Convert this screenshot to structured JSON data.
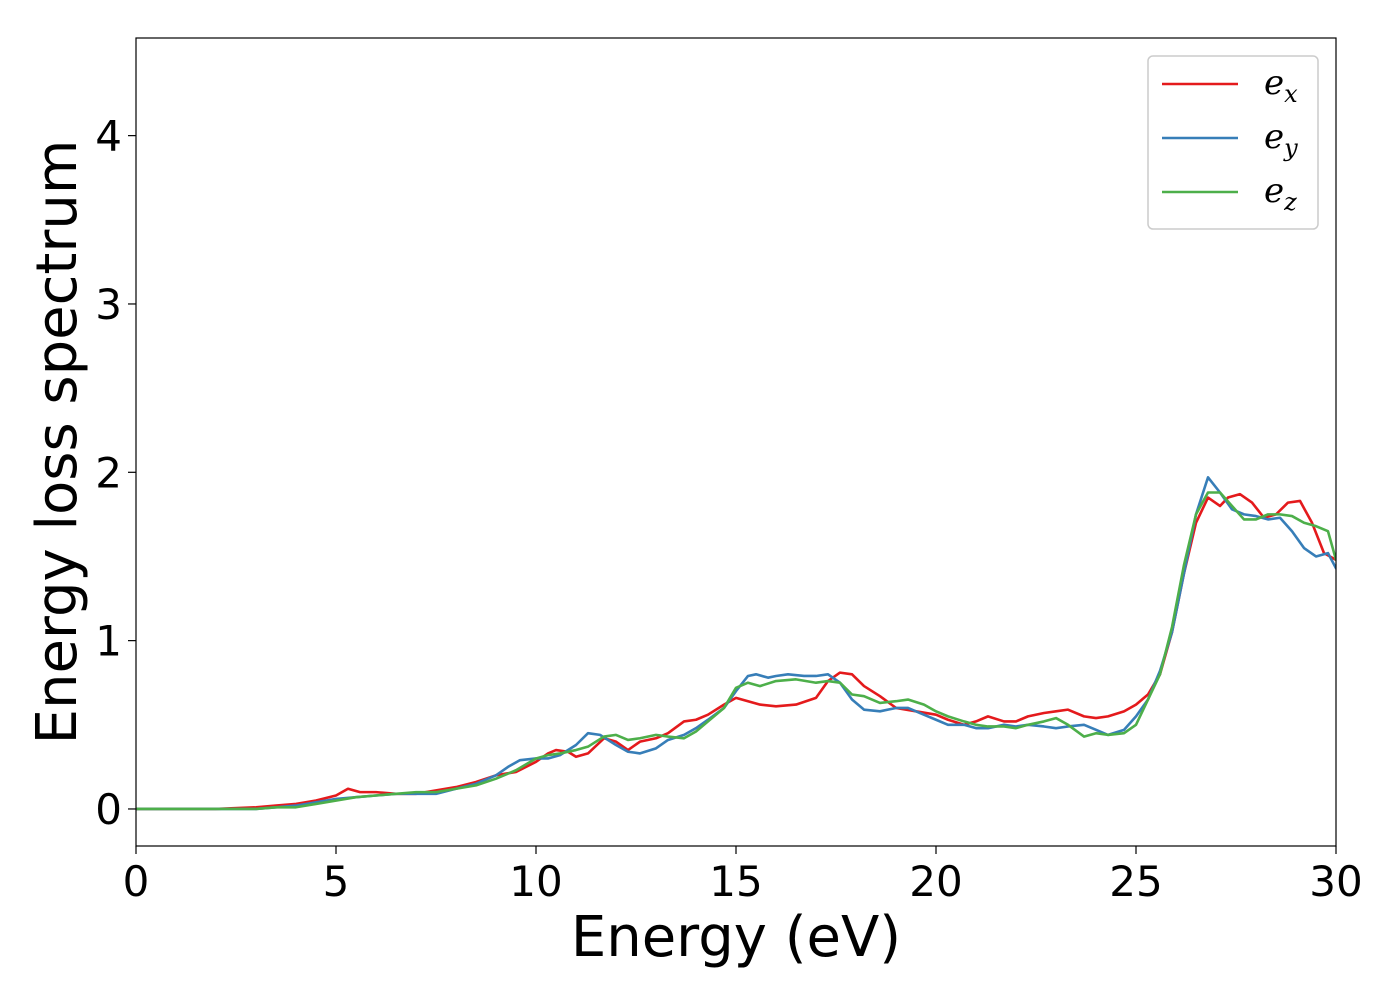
{
  "chart_data": {
    "type": "line",
    "title": "",
    "xlabel": "Energy (eV)",
    "ylabel": "Energy loss spectrum",
    "xlim": [
      0,
      30
    ],
    "ylim": [
      -0.22,
      4.58
    ],
    "xticks": [
      "0",
      "5",
      "10",
      "15",
      "20",
      "25",
      "30"
    ],
    "yticks": [
      "0",
      "1",
      "2",
      "3",
      "4"
    ],
    "grid": false,
    "legend_position": "top-right",
    "series": [
      {
        "name": "e",
        "subscript": "x",
        "color": "#e41a1c",
        "x": [
          0,
          1,
          2,
          3,
          3.5,
          4,
          4.5,
          5,
          5.3,
          5.6,
          6,
          6.5,
          7,
          7.5,
          8,
          8.5,
          9,
          9.5,
          10,
          10.3,
          10.5,
          10.8,
          11,
          11.3,
          11.7,
          12,
          12.3,
          12.6,
          13,
          13.3,
          13.7,
          14,
          14.3,
          14.7,
          15,
          15.3,
          15.6,
          16,
          16.5,
          17,
          17.3,
          17.6,
          17.9,
          18.2,
          18.6,
          19,
          19.5,
          20,
          20.3,
          20.7,
          21,
          21.3,
          21.7,
          22,
          22.3,
          22.7,
          23,
          23.3,
          23.7,
          24,
          24.3,
          24.7,
          25,
          25.3,
          25.6,
          25.9,
          26.2,
          26.5,
          26.8,
          27.1,
          27.3,
          27.6,
          27.9,
          28.2,
          28.5,
          28.8,
          29.1,
          29.4,
          29.7,
          30
        ],
        "y": [
          0,
          0,
          0,
          0.01,
          0.02,
          0.03,
          0.05,
          0.08,
          0.12,
          0.1,
          0.1,
          0.09,
          0.09,
          0.11,
          0.13,
          0.16,
          0.2,
          0.22,
          0.28,
          0.33,
          0.35,
          0.34,
          0.31,
          0.33,
          0.42,
          0.4,
          0.35,
          0.4,
          0.42,
          0.45,
          0.52,
          0.53,
          0.56,
          0.62,
          0.66,
          0.64,
          0.62,
          0.61,
          0.62,
          0.66,
          0.76,
          0.81,
          0.8,
          0.73,
          0.67,
          0.6,
          0.58,
          0.56,
          0.53,
          0.5,
          0.52,
          0.55,
          0.52,
          0.52,
          0.55,
          0.57,
          0.58,
          0.59,
          0.55,
          0.54,
          0.55,
          0.58,
          0.62,
          0.68,
          0.8,
          1.05,
          1.4,
          1.7,
          1.85,
          1.8,
          1.85,
          1.87,
          1.82,
          1.73,
          1.75,
          1.82,
          1.83,
          1.7,
          1.52,
          1.48
        ]
      },
      {
        "name": "e",
        "subscript": "y",
        "color": "#377eb8",
        "x": [
          0,
          1,
          2,
          3,
          3.5,
          4,
          4.5,
          5,
          5.5,
          6,
          6.5,
          7,
          7.5,
          8,
          8.5,
          9,
          9.3,
          9.6,
          10,
          10.3,
          10.6,
          11,
          11.3,
          11.6,
          12,
          12.3,
          12.6,
          13,
          13.3,
          13.7,
          14,
          14.3,
          14.7,
          15,
          15.3,
          15.5,
          15.8,
          16,
          16.3,
          16.7,
          17,
          17.3,
          17.6,
          17.9,
          18.2,
          18.6,
          19,
          19.3,
          19.6,
          20,
          20.3,
          20.7,
          21,
          21.3,
          21.7,
          22,
          22.3,
          22.7,
          23,
          23.3,
          23.7,
          24,
          24.3,
          24.7,
          25,
          25.3,
          25.6,
          25.9,
          26.2,
          26.5,
          26.8,
          27.1,
          27.4,
          27.7,
          28,
          28.3,
          28.6,
          28.9,
          29.2,
          29.5,
          29.8,
          30
        ],
        "y": [
          0,
          0,
          0,
          0,
          0.01,
          0.02,
          0.04,
          0.06,
          0.07,
          0.08,
          0.09,
          0.09,
          0.09,
          0.12,
          0.15,
          0.2,
          0.25,
          0.29,
          0.3,
          0.3,
          0.32,
          0.38,
          0.45,
          0.44,
          0.38,
          0.34,
          0.33,
          0.36,
          0.41,
          0.44,
          0.48,
          0.53,
          0.6,
          0.7,
          0.79,
          0.8,
          0.78,
          0.79,
          0.8,
          0.79,
          0.79,
          0.8,
          0.75,
          0.65,
          0.59,
          0.58,
          0.6,
          0.6,
          0.57,
          0.53,
          0.5,
          0.5,
          0.48,
          0.48,
          0.5,
          0.49,
          0.5,
          0.49,
          0.48,
          0.49,
          0.5,
          0.47,
          0.44,
          0.47,
          0.55,
          0.65,
          0.82,
          1.05,
          1.4,
          1.75,
          1.97,
          1.88,
          1.78,
          1.75,
          1.74,
          1.72,
          1.73,
          1.65,
          1.55,
          1.5,
          1.52,
          1.43
        ]
      },
      {
        "name": "e",
        "subscript": "z",
        "color": "#4daf4a",
        "x": [
          0,
          1,
          2,
          3,
          3.5,
          4,
          4.5,
          5,
          5.5,
          6,
          6.5,
          7,
          7.5,
          8,
          8.5,
          9,
          9.5,
          10,
          10.3,
          10.6,
          11,
          11.3,
          11.7,
          12,
          12.3,
          12.6,
          13,
          13.3,
          13.7,
          14,
          14.3,
          14.7,
          15,
          15.3,
          15.6,
          16,
          16.5,
          17,
          17.3,
          17.6,
          17.9,
          18.2,
          18.6,
          19,
          19.3,
          19.7,
          20,
          20.3,
          20.7,
          21,
          21.3,
          21.7,
          22,
          22.3,
          22.7,
          23,
          23.3,
          23.7,
          24,
          24.3,
          24.7,
          25,
          25.3,
          25.6,
          25.9,
          26.2,
          26.5,
          26.8,
          27.1,
          27.4,
          27.7,
          28,
          28.3,
          28.6,
          28.9,
          29.2,
          29.5,
          29.8,
          30
        ],
        "y": [
          0,
          0,
          0,
          0,
          0.01,
          0.01,
          0.03,
          0.05,
          0.07,
          0.08,
          0.09,
          0.1,
          0.1,
          0.12,
          0.14,
          0.18,
          0.23,
          0.3,
          0.32,
          0.33,
          0.35,
          0.37,
          0.43,
          0.44,
          0.41,
          0.42,
          0.44,
          0.43,
          0.42,
          0.46,
          0.52,
          0.6,
          0.72,
          0.75,
          0.73,
          0.76,
          0.77,
          0.75,
          0.76,
          0.75,
          0.68,
          0.67,
          0.63,
          0.64,
          0.65,
          0.62,
          0.58,
          0.55,
          0.52,
          0.5,
          0.49,
          0.49,
          0.48,
          0.5,
          0.52,
          0.54,
          0.5,
          0.43,
          0.45,
          0.44,
          0.45,
          0.5,
          0.65,
          0.8,
          1.08,
          1.45,
          1.75,
          1.88,
          1.88,
          1.8,
          1.72,
          1.72,
          1.75,
          1.75,
          1.74,
          1.7,
          1.68,
          1.65,
          1.48
        ]
      }
    ]
  }
}
